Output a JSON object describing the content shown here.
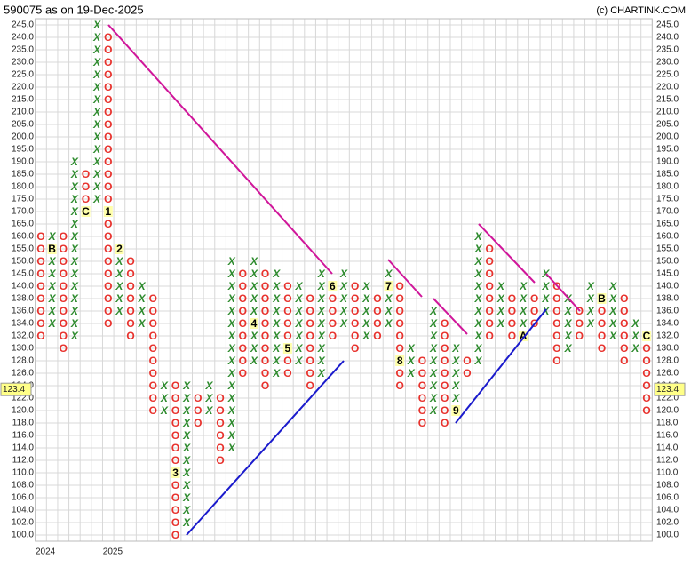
{
  "chart_data": {
    "type": "point_and_figure",
    "title": "590075 as on 19-Dec-2025",
    "credit": "(c) CHARTINK.COM",
    "x_colour": "#2e8b2e",
    "o_colour": "#e8322d",
    "grid": true,
    "last_price": {
      "value": 123.4,
      "label": "123.4"
    },
    "year_labels": [
      {
        "column": 0,
        "label": "2024"
      },
      {
        "column": 6,
        "label": "2025"
      }
    ],
    "yticks": [
      {
        "value": 100,
        "label": "100.0"
      },
      {
        "value": 102,
        "label": "102.0"
      },
      {
        "value": 104,
        "label": "104.0"
      },
      {
        "value": 106,
        "label": "106.0"
      },
      {
        "value": 108,
        "label": "108.0"
      },
      {
        "value": 110,
        "label": "110.0"
      },
      {
        "value": 112,
        "label": "112.0"
      },
      {
        "value": 114,
        "label": "114.0"
      },
      {
        "value": 116,
        "label": "116.0"
      },
      {
        "value": 118,
        "label": "118.0"
      },
      {
        "value": 120,
        "label": "120.0"
      },
      {
        "value": 122,
        "label": "122.0"
      },
      {
        "value": 124,
        "label": "124.0"
      },
      {
        "value": 126,
        "label": "126.0"
      },
      {
        "value": 128,
        "label": "128.0"
      },
      {
        "value": 130,
        "label": "130.0"
      },
      {
        "value": 132,
        "label": "132.0"
      },
      {
        "value": 134,
        "label": "134.0"
      },
      {
        "value": 136,
        "label": "136.0"
      },
      {
        "value": 138,
        "label": "138.0"
      },
      {
        "value": 140,
        "label": "140.0"
      },
      {
        "value": 145,
        "label": "145.0"
      },
      {
        "value": 150,
        "label": "150.0"
      },
      {
        "value": 155,
        "label": "155.0"
      },
      {
        "value": 160,
        "label": "160.0"
      },
      {
        "value": 165,
        "label": "165.0"
      },
      {
        "value": 170,
        "label": "170.0"
      },
      {
        "value": 175,
        "label": "175.0"
      },
      {
        "value": 180,
        "label": "180.0"
      },
      {
        "value": 185,
        "label": "185.0"
      },
      {
        "value": 190,
        "label": "190.0"
      },
      {
        "value": 195,
        "label": "195.0"
      },
      {
        "value": 200,
        "label": "200.0"
      },
      {
        "value": 205,
        "label": "205.0"
      },
      {
        "value": 210,
        "label": "210.0"
      },
      {
        "value": 215,
        "label": "215.0"
      },
      {
        "value": 220,
        "label": "220.0"
      },
      {
        "value": 225,
        "label": "225.0"
      },
      {
        "value": 230,
        "label": "230.0"
      },
      {
        "value": 235,
        "label": "235.0"
      },
      {
        "value": 240,
        "label": "240.0"
      },
      {
        "value": 245,
        "label": "245.0"
      }
    ],
    "columns": [
      {
        "type": "O",
        "high": 160,
        "low": 132
      },
      {
        "type": "X",
        "high": 160,
        "low": 134,
        "markers": [
          {
            "value": 155,
            "label": "B"
          }
        ]
      },
      {
        "type": "O",
        "high": 160,
        "low": 130
      },
      {
        "type": "X",
        "high": 190,
        "low": 132
      },
      {
        "type": "O",
        "high": 185,
        "low": 170,
        "markers": [
          {
            "value": 170,
            "label": "C"
          }
        ]
      },
      {
        "type": "X",
        "high": 245,
        "low": 175
      },
      {
        "type": "O",
        "high": 240,
        "low": 134,
        "markers": [
          {
            "value": 170,
            "label": "1"
          }
        ]
      },
      {
        "type": "X",
        "high": 155,
        "low": 136,
        "markers": [
          {
            "value": 155,
            "label": "2"
          }
        ]
      },
      {
        "type": "O",
        "high": 150,
        "low": 132
      },
      {
        "type": "X",
        "high": 140,
        "low": 134
      },
      {
        "type": "O",
        "high": 138,
        "low": 120
      },
      {
        "type": "X",
        "high": 124,
        "low": 120
      },
      {
        "type": "O",
        "high": 124,
        "low": 100,
        "markers": [
          {
            "value": 110,
            "label": "3"
          }
        ]
      },
      {
        "type": "X",
        "high": 124,
        "low": 102
      },
      {
        "type": "O",
        "high": 122,
        "low": 118
      },
      {
        "type": "X",
        "high": 124,
        "low": 120
      },
      {
        "type": "O",
        "high": 122,
        "low": 112
      },
      {
        "type": "X",
        "high": 150,
        "low": 114
      },
      {
        "type": "O",
        "high": 145,
        "low": 126
      },
      {
        "type": "X",
        "high": 150,
        "low": 128,
        "markers": [
          {
            "value": 134,
            "label": "4"
          }
        ]
      },
      {
        "type": "O",
        "high": 145,
        "low": 124
      },
      {
        "type": "X",
        "high": 145,
        "low": 126
      },
      {
        "type": "O",
        "high": 140,
        "low": 126,
        "markers": [
          {
            "value": 130,
            "label": "5"
          }
        ]
      },
      {
        "type": "X",
        "high": 140,
        "low": 128
      },
      {
        "type": "O",
        "high": 138,
        "low": 124
      },
      {
        "type": "X",
        "high": 145,
        "low": 126
      },
      {
        "type": "O",
        "high": 140,
        "low": 132,
        "markers": [
          {
            "value": 140,
            "label": "6"
          }
        ]
      },
      {
        "type": "X",
        "high": 145,
        "low": 134
      },
      {
        "type": "O",
        "high": 140,
        "low": 130
      },
      {
        "type": "X",
        "high": 140,
        "low": 132
      },
      {
        "type": "O",
        "high": 138,
        "low": 132
      },
      {
        "type": "X",
        "high": 145,
        "low": 134,
        "markers": [
          {
            "value": 140,
            "label": "7"
          }
        ]
      },
      {
        "type": "O",
        "high": 140,
        "low": 124,
        "markers": [
          {
            "value": 128,
            "label": "8"
          }
        ]
      },
      {
        "type": "X",
        "high": 130,
        "low": 126
      },
      {
        "type": "O",
        "high": 128,
        "low": 118
      },
      {
        "type": "X",
        "high": 136,
        "low": 120
      },
      {
        "type": "O",
        "high": 134,
        "low": 118
      },
      {
        "type": "X",
        "high": 130,
        "low": 120,
        "markers": [
          {
            "value": 120,
            "label": "9"
          }
        ]
      },
      {
        "type": "O",
        "high": 128,
        "low": 126
      },
      {
        "type": "X",
        "high": 160,
        "low": 128
      },
      {
        "type": "O",
        "high": 155,
        "low": 132
      },
      {
        "type": "X",
        "high": 140,
        "low": 134
      },
      {
        "type": "O",
        "high": 138,
        "low": 132
      },
      {
        "type": "X",
        "high": 140,
        "low": 132,
        "markers": [
          {
            "value": 132,
            "label": "A"
          }
        ]
      },
      {
        "type": "O",
        "high": 138,
        "low": 134
      },
      {
        "type": "X",
        "high": 145,
        "low": 136
      },
      {
        "type": "O",
        "high": 140,
        "low": 128
      },
      {
        "type": "X",
        "high": 138,
        "low": 130
      },
      {
        "type": "O",
        "high": 136,
        "low": 132
      },
      {
        "type": "X",
        "high": 140,
        "low": 134
      },
      {
        "type": "O",
        "high": 138,
        "low": 130,
        "markers": [
          {
            "value": 138,
            "label": "B"
          }
        ]
      },
      {
        "type": "X",
        "high": 140,
        "low": 132
      },
      {
        "type": "O",
        "high": 138,
        "low": 128
      },
      {
        "type": "X",
        "high": 134,
        "low": 130
      },
      {
        "type": "O",
        "high": 132,
        "low": 120,
        "markers": [
          {
            "value": 132,
            "label": "C"
          }
        ]
      }
    ]
  }
}
